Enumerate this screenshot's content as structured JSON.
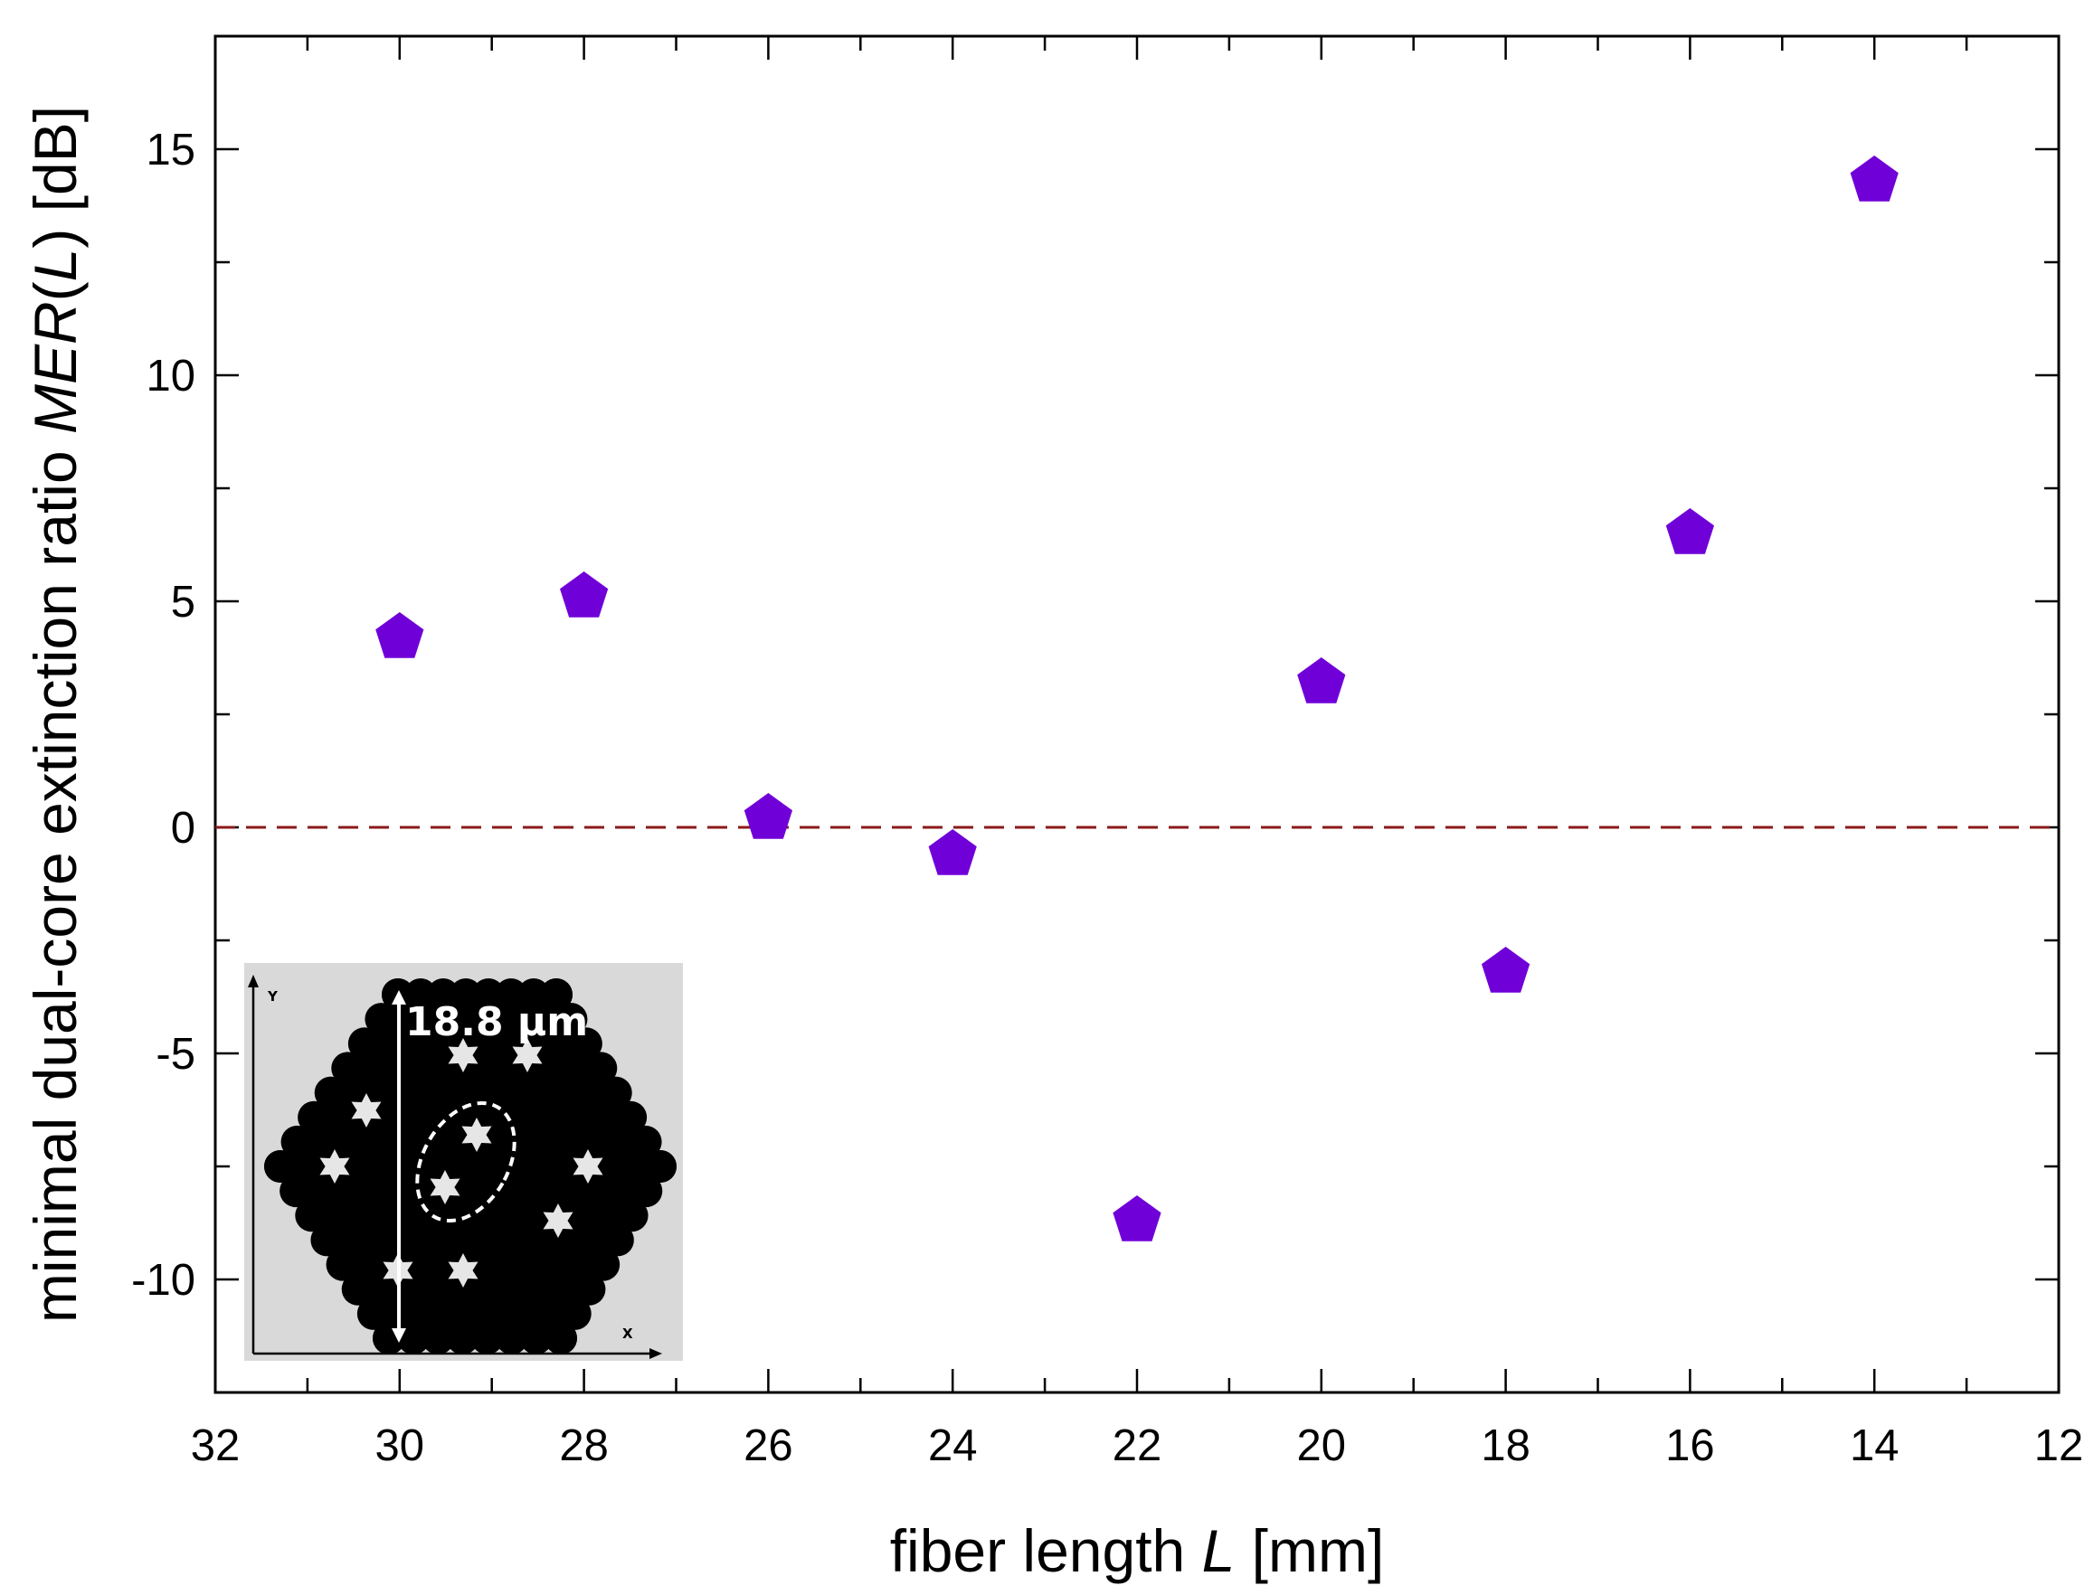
{
  "chart_data": {
    "type": "scatter",
    "xlabel_prefix": "fiber length ",
    "xlabel_var": "L",
    "xlabel_suffix": " [mm]",
    "ylabel_prefix": "minimal dual-core extinction ratio ",
    "ylabel_var": "MER",
    "ylabel_paren_open": "(",
    "ylabel_paren_var": "L",
    "ylabel_suffix": ") [dB]",
    "xlim": [
      32,
      12
    ],
    "ylim": [
      -12.5,
      17.5
    ],
    "x_reversed": true,
    "xticks": [
      "32",
      "30",
      "28",
      "26",
      "24",
      "22",
      "20",
      "18",
      "16",
      "14",
      "12"
    ],
    "yticks": [
      "15",
      "10",
      "5",
      "0",
      "-5",
      "-10"
    ],
    "grid": false,
    "reference_line": {
      "y": 0,
      "style": "dashed",
      "color": "#8b1a1a"
    },
    "marker": {
      "shape": "pentagon",
      "color": "#7000d8"
    },
    "series": [
      {
        "x": [
          30,
          28,
          26,
          24,
          22,
          20,
          18,
          16,
          14
        ],
        "y": [
          4.2,
          5.1,
          0.2,
          -0.6,
          -8.7,
          3.2,
          -3.2,
          6.5,
          14.3
        ]
      }
    ],
    "inset": {
      "scale_label": "18.8 µm",
      "x_axis_label": "X",
      "y_axis_label": "Y"
    }
  }
}
